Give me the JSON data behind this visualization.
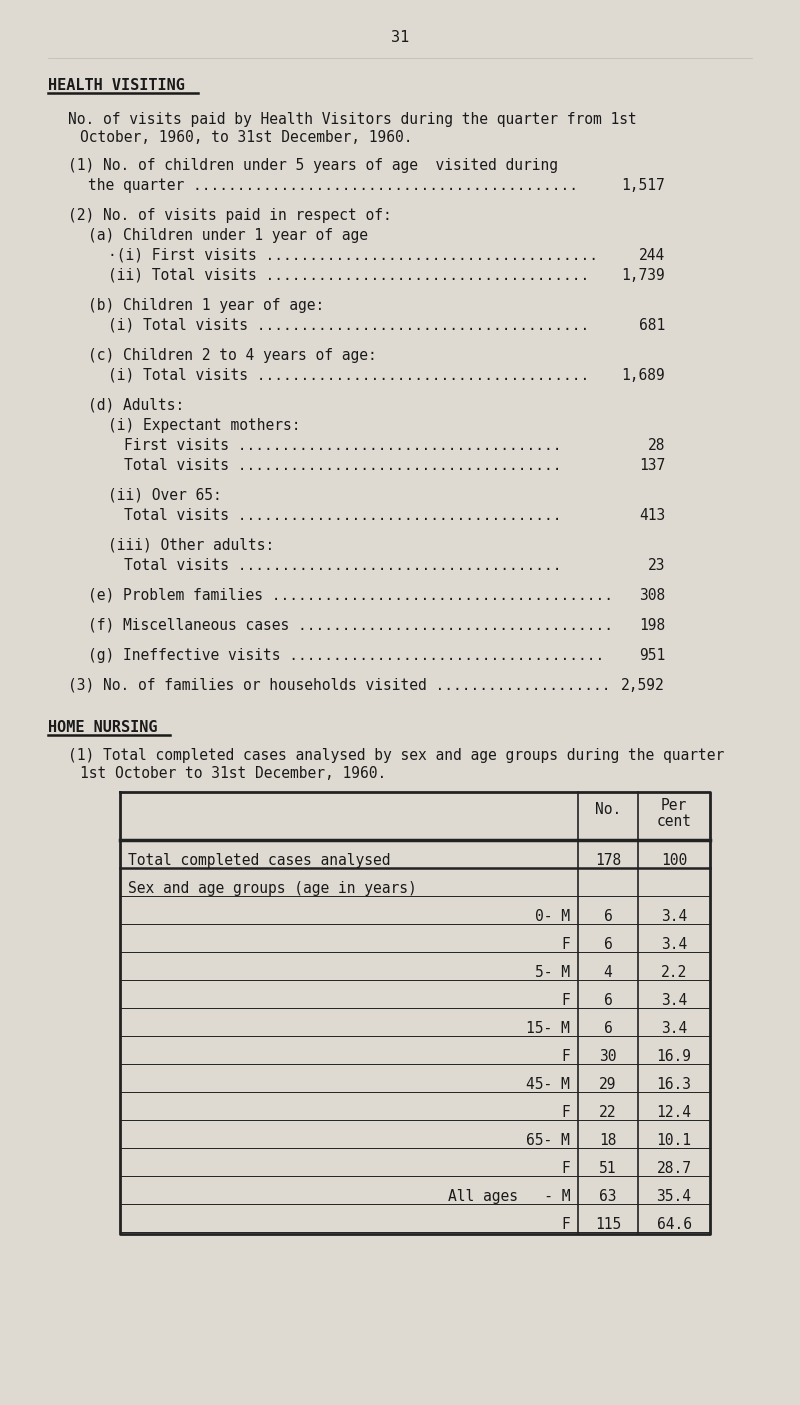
{
  "page_number": "31",
  "bg_color": "#dedad2",
  "text_color": "#1a1a1a",
  "section1_title": "HEALTH VISITING",
  "section2_title": "HOME NURSING",
  "items": [
    {
      "indent": 0,
      "text": "(1) No. of children under 5 years of age  visited during",
      "value": null,
      "dots": false
    },
    {
      "indent": 1,
      "text": "the quarter ............................................",
      "value": "1,517",
      "dots": false
    },
    {
      "indent": 0,
      "text": "(2) No. of visits paid in respect of:",
      "value": null,
      "dots": false,
      "space_before": true
    },
    {
      "indent": 1,
      "text": "(a) Children under 1 year of age",
      "value": null,
      "dots": false
    },
    {
      "indent": 2,
      "text": "·(i) First visits ......................................",
      "value": "244",
      "dots": false
    },
    {
      "indent": 2,
      "text": "(ii) Total visits .....................................",
      "value": "1,739",
      "dots": false
    },
    {
      "indent": 1,
      "text": "(b) Children 1 year of age:",
      "value": null,
      "dots": false,
      "space_before": true
    },
    {
      "indent": 2,
      "text": "(i) Total visits ......................................",
      "value": "681",
      "dots": false
    },
    {
      "indent": 1,
      "text": "(c) Children 2 to 4 years of age:",
      "value": null,
      "dots": false,
      "space_before": true
    },
    {
      "indent": 2,
      "text": "(i) Total visits ......................................",
      "value": "1,689",
      "dots": false
    },
    {
      "indent": 1,
      "text": "(d) Adults:",
      "value": null,
      "dots": false,
      "space_before": true
    },
    {
      "indent": 2,
      "text": "(i) Expectant mothers:",
      "value": null,
      "dots": false
    },
    {
      "indent": 3,
      "text": "First visits .....................................",
      "value": "28",
      "dots": false
    },
    {
      "indent": 3,
      "text": "Total visits .....................................",
      "value": "137",
      "dots": false
    },
    {
      "indent": 2,
      "text": "(ii) Over 65:",
      "value": null,
      "dots": false,
      "space_before": true
    },
    {
      "indent": 3,
      "text": "Total visits .....................................",
      "value": "413",
      "dots": false
    },
    {
      "indent": 2,
      "text": "(iii) Other adults:",
      "value": null,
      "dots": false,
      "space_before": true
    },
    {
      "indent": 3,
      "text": "Total visits .....................................",
      "value": "23",
      "dots": false
    },
    {
      "indent": 1,
      "text": "(e) Problem families .......................................",
      "value": "308",
      "dots": false,
      "space_before": true
    },
    {
      "indent": 1,
      "text": "(f) Miscellaneous cases ....................................",
      "value": "198",
      "dots": false,
      "space_before": true
    },
    {
      "indent": 1,
      "text": "(g) Ineffective visits ....................................",
      "value": "951",
      "dots": false,
      "space_before": true
    },
    {
      "indent": 0,
      "text": "(3) No. of families or households visited ....................",
      "value": "2,592",
      "dots": false,
      "space_before": true
    }
  ],
  "table_rows": [
    {
      "label": "Total completed cases analysed",
      "no": "178",
      "pct": "100",
      "bold_label": false,
      "separator": true
    },
    {
      "label": "Sex and age groups (age in years)",
      "no": "",
      "pct": "",
      "bold_label": false,
      "separator": false
    },
    {
      "label": "0- M",
      "no": "6",
      "pct": "3.4",
      "bold_label": false,
      "separator": false,
      "right_align_label": true
    },
    {
      "label": "F",
      "no": "6",
      "pct": "3.4",
      "bold_label": false,
      "separator": false,
      "right_align_label": true
    },
    {
      "label": "5- M",
      "no": "4",
      "pct": "2.2",
      "bold_label": false,
      "separator": false,
      "right_align_label": true
    },
    {
      "label": "F",
      "no": "6",
      "pct": "3.4",
      "bold_label": false,
      "separator": false,
      "right_align_label": true
    },
    {
      "label": "15- M",
      "no": "6",
      "pct": "3.4",
      "bold_label": false,
      "separator": false,
      "right_align_label": true
    },
    {
      "label": "F",
      "no": "30",
      "pct": "16.9",
      "bold_label": false,
      "separator": false,
      "right_align_label": true
    },
    {
      "label": "45- M",
      "no": "29",
      "pct": "16.3",
      "bold_label": false,
      "separator": false,
      "right_align_label": true
    },
    {
      "label": "F",
      "no": "22",
      "pct": "12.4",
      "bold_label": false,
      "separator": false,
      "right_align_label": true
    },
    {
      "label": "65- M",
      "no": "18",
      "pct": "10.1",
      "bold_label": false,
      "separator": false,
      "right_align_label": true
    },
    {
      "label": "F",
      "no": "51",
      "pct": "28.7",
      "bold_label": false,
      "separator": false,
      "right_align_label": true
    },
    {
      "label": "All ages   - M",
      "no": "63",
      "pct": "35.4",
      "bold_label": false,
      "separator": false,
      "right_align_label": true
    },
    {
      "label": "F",
      "no": "115",
      "pct": "64.6",
      "bold_label": false,
      "separator": false,
      "right_align_label": true
    }
  ]
}
